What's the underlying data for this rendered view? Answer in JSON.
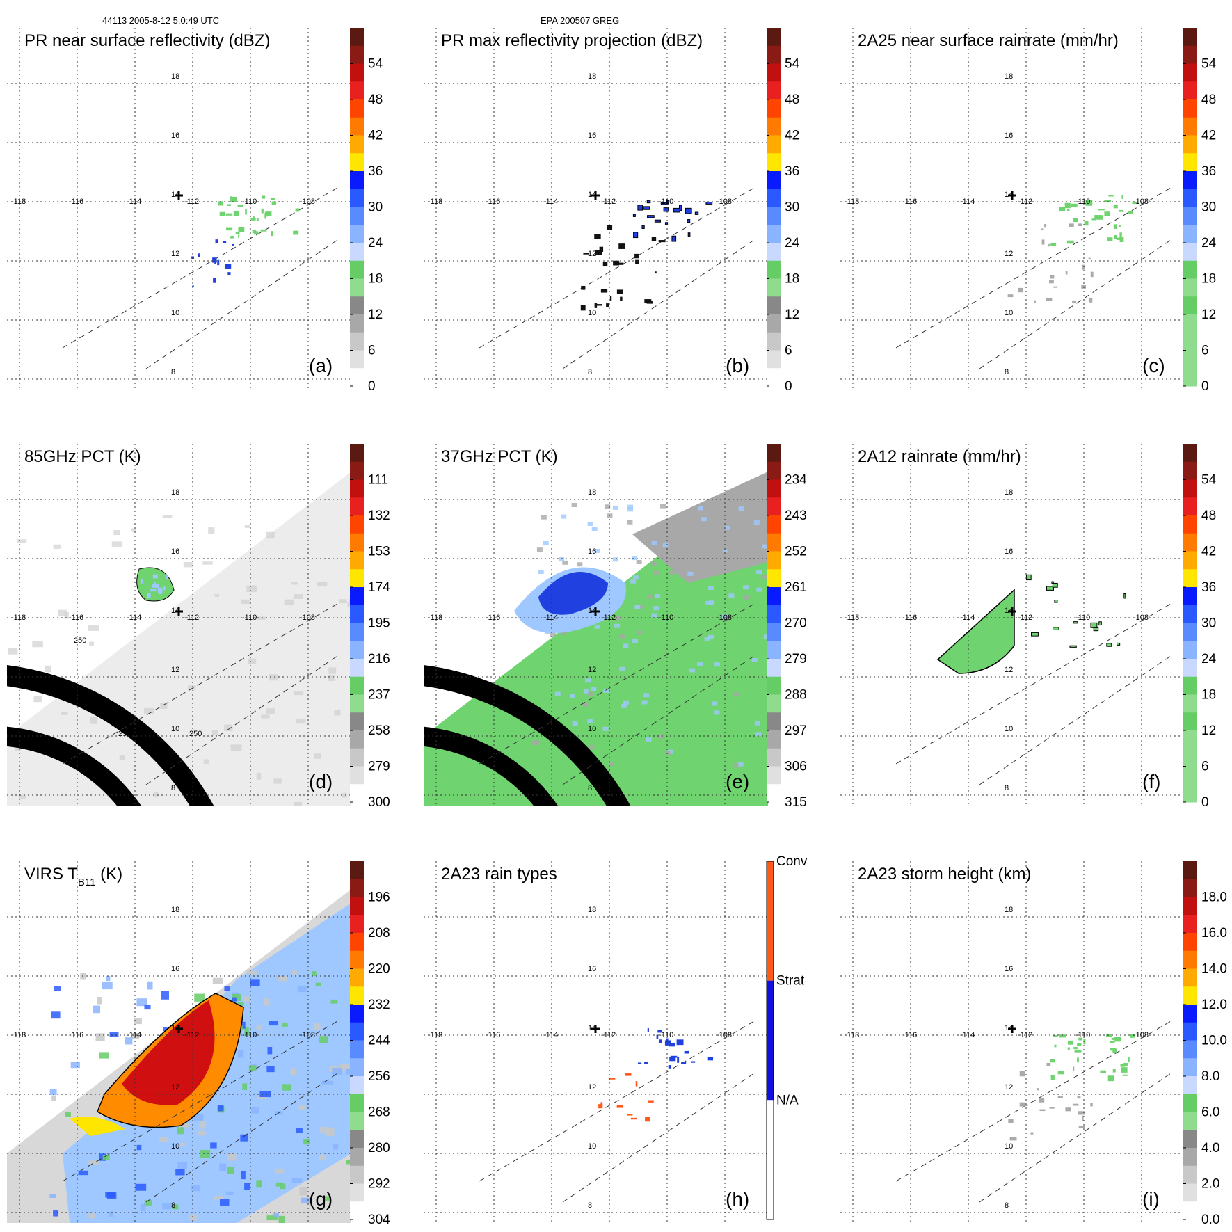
{
  "header": {
    "left": "44113 2005-8-12 5:0:49 UTC",
    "center": "EPA 200507 GREG"
  },
  "colors": {
    "grid": "#333333",
    "gray_swath": "#c8c8c8",
    "green": "#6fd36f",
    "lightblue": "#9ec8ff",
    "blue": "#2040e0",
    "orange": "#ff8c00",
    "red": "#d01010"
  },
  "chart_data": [
    {
      "type": "heatmap",
      "id": "a",
      "panel_label": "(a)",
      "title": "PR near surface reflectivity (dBZ)",
      "lon_ticks": [
        "-118",
        "-116",
        "-114",
        "-112",
        "-110",
        "-108"
      ],
      "lat_ticks": [
        "8",
        "10",
        "12",
        "14",
        "16",
        "18"
      ],
      "colorbar": {
        "ticks": [
          "54",
          "48",
          "42",
          "36",
          "30",
          "24",
          "18",
          "12",
          "6",
          "0"
        ],
        "colors": [
          "#5a1a12",
          "#8a1a14",
          "#c01010",
          "#e82020",
          "#ff4400",
          "#ff7a00",
          "#ffaa00",
          "#ffe600",
          "#0a1aff",
          "#2a5aff",
          "#5a8aff",
          "#8ab4ff",
          "#c8d8ff",
          "#66cc66",
          "#8fdc8f",
          "#888888",
          "#a8a8a8",
          "#c8c8c8",
          "#e0e0e0",
          "#ffffff"
        ]
      },
      "swath": "none",
      "rain": "pr_sparse"
    },
    {
      "type": "heatmap",
      "id": "b",
      "panel_label": "(b)",
      "title": "PR max reflectivity projection (dBZ)",
      "lon_ticks": [
        "-118",
        "-116",
        "-114",
        "-112",
        "-110",
        "-108"
      ],
      "lat_ticks": [
        "8",
        "10",
        "12",
        "14",
        "16",
        "18"
      ],
      "colorbar": {
        "ticks": [
          "54",
          "48",
          "42",
          "36",
          "30",
          "24",
          "18",
          "12",
          "6",
          "0"
        ],
        "colors": [
          "#5a1a12",
          "#8a1a14",
          "#c01010",
          "#e82020",
          "#ff4400",
          "#ff7a00",
          "#ffaa00",
          "#ffe600",
          "#0a1aff",
          "#2a5aff",
          "#5a8aff",
          "#8ab4ff",
          "#c8d8ff",
          "#66cc66",
          "#8fdc8f",
          "#888888",
          "#a8a8a8",
          "#c8c8c8",
          "#e0e0e0",
          "#ffffff"
        ]
      },
      "swath": "none",
      "rain": "pr_blue"
    },
    {
      "type": "heatmap",
      "id": "c",
      "panel_label": "(c)",
      "title": "2A25 near surface rainrate (mm/hr)",
      "lon_ticks": [
        "-118",
        "-116",
        "-114",
        "-112",
        "-110",
        "-108"
      ],
      "lat_ticks": [
        "8",
        "10",
        "12",
        "14",
        "16",
        "18"
      ],
      "colorbar": {
        "ticks": [
          "54",
          "48",
          "42",
          "36",
          "30",
          "24",
          "18",
          "12",
          "6",
          "0"
        ],
        "colors": [
          "#5a1a12",
          "#8a1a14",
          "#c01010",
          "#e82020",
          "#ff4400",
          "#ff7a00",
          "#ffaa00",
          "#ffe600",
          "#0a1aff",
          "#2a5aff",
          "#5a8aff",
          "#8ab4ff",
          "#c8d8ff",
          "#66cc66",
          "#8fdc8f",
          "#66cc66",
          "#8fdc8f",
          "#8fdc8f",
          "#8fdc8f",
          "#8fdc8f"
        ]
      },
      "swath": "none",
      "rain": "pr_green"
    },
    {
      "type": "heatmap",
      "id": "d",
      "panel_label": "(d)",
      "title": "85GHz PCT (K)",
      "lon_ticks": [
        "-118",
        "-116",
        "-114",
        "-112",
        "-110",
        "-108"
      ],
      "lat_ticks": [
        "8",
        "10",
        "12",
        "14",
        "16",
        "18"
      ],
      "colorbar": {
        "ticks": [
          "111",
          "132",
          "153",
          "174",
          "195",
          "216",
          "237",
          "258",
          "279",
          "300"
        ],
        "colors": [
          "#5a1a12",
          "#8a1a14",
          "#c01010",
          "#e82020",
          "#ff4400",
          "#ff7a00",
          "#ffaa00",
          "#ffe600",
          "#0a1aff",
          "#2a5aff",
          "#5a8aff",
          "#8ab4ff",
          "#c8d8ff",
          "#66cc66",
          "#8fdc8f",
          "#888888",
          "#a8a8a8",
          "#c8c8c8",
          "#e0e0e0",
          "#ffffff"
        ]
      },
      "swath": "gray",
      "arc_labels": [
        "250",
        "250",
        "250",
        "250"
      ],
      "rain": "d_blob"
    },
    {
      "type": "heatmap",
      "id": "e",
      "panel_label": "(e)",
      "title": "37GHz PCT (K)",
      "lon_ticks": [
        "-118",
        "-116",
        "-114",
        "-112",
        "-110",
        "-108"
      ],
      "lat_ticks": [
        "8",
        "10",
        "12",
        "14",
        "16",
        "18"
      ],
      "colorbar": {
        "ticks": [
          "234",
          "243",
          "252",
          "261",
          "270",
          "279",
          "288",
          "297",
          "306",
          "315"
        ],
        "colors": [
          "#5a1a12",
          "#8a1a14",
          "#c01010",
          "#e82020",
          "#ff4400",
          "#ff7a00",
          "#ffaa00",
          "#ffe600",
          "#0a1aff",
          "#2a5aff",
          "#5a8aff",
          "#8ab4ff",
          "#c8d8ff",
          "#66cc66",
          "#8fdc8f",
          "#888888",
          "#a8a8a8",
          "#c8c8c8",
          "#e0e0e0",
          "#ffffff"
        ]
      },
      "swath": "green",
      "rain": "e_blue"
    },
    {
      "type": "heatmap",
      "id": "f",
      "panel_label": "(f)",
      "title": "2A12 rainrate (mm/hr)",
      "lon_ticks": [
        "-118",
        "-116",
        "-114",
        "-112",
        "-110",
        "-108"
      ],
      "lat_ticks": [
        "8",
        "10",
        "12",
        "14",
        "16",
        "18"
      ],
      "colorbar": {
        "ticks": [
          "54",
          "48",
          "42",
          "36",
          "30",
          "24",
          "18",
          "12",
          "6",
          "0"
        ],
        "colors": [
          "#5a1a12",
          "#8a1a14",
          "#c01010",
          "#e82020",
          "#ff4400",
          "#ff7a00",
          "#ffaa00",
          "#ffe600",
          "#0a1aff",
          "#2a5aff",
          "#5a8aff",
          "#8ab4ff",
          "#c8d8ff",
          "#66cc66",
          "#8fdc8f",
          "#66cc66",
          "#8fdc8f",
          "#8fdc8f",
          "#8fdc8f",
          "#8fdc8f"
        ]
      },
      "swath": "none",
      "rain": "f_green"
    },
    {
      "type": "heatmap",
      "id": "g",
      "panel_label": "(g)",
      "title": "VIRS T",
      "title_sub": "B11",
      "title_suffix": " (K)",
      "lon_ticks": [
        "-118",
        "-116",
        "-114",
        "-112",
        "-110",
        "-108"
      ],
      "lat_ticks": [
        "8",
        "10",
        "12",
        "14",
        "16",
        "18"
      ],
      "colorbar": {
        "ticks": [
          "196",
          "208",
          "220",
          "232",
          "244",
          "256",
          "268",
          "280",
          "292",
          "304"
        ],
        "colors": [
          "#5a1a12",
          "#8a1a14",
          "#c01010",
          "#e82020",
          "#ff4400",
          "#ff7a00",
          "#ffaa00",
          "#ffe600",
          "#0a1aff",
          "#2a5aff",
          "#5a8aff",
          "#8ab4ff",
          "#c8d8ff",
          "#66cc66",
          "#8fdc8f",
          "#888888",
          "#a8a8a8",
          "#c8c8c8",
          "#e0e0e0",
          "#ffffff"
        ]
      },
      "swath": "virs",
      "rain": "g_storm"
    },
    {
      "type": "heatmap",
      "id": "h",
      "panel_label": "(h)",
      "title": "2A23 rain types",
      "lon_ticks": [
        "-118",
        "-116",
        "-114",
        "-112",
        "-110",
        "-108"
      ],
      "lat_ticks": [
        "8",
        "10",
        "12",
        "14",
        "16",
        "18"
      ],
      "colorbar": {
        "categorical": true,
        "ticks": [
          "Conv",
          "Strat",
          "N/A"
        ],
        "colors": [
          "#ff5a1a",
          "#1010e0",
          "#ffffff"
        ]
      },
      "swath": "none",
      "rain": "h_types"
    },
    {
      "type": "heatmap",
      "id": "i",
      "panel_label": "(i)",
      "title": "2A23 storm height (km)",
      "lon_ticks": [
        "-118",
        "-116",
        "-114",
        "-112",
        "-110",
        "-108"
      ],
      "lat_ticks": [
        "8",
        "10",
        "12",
        "14",
        "16",
        "18"
      ],
      "colorbar": {
        "ticks": [
          "18.0",
          "16.0",
          "14.0",
          "12.0",
          "10.0",
          "8.0",
          "6.0",
          "4.0",
          "2.0",
          "0.0"
        ],
        "colors": [
          "#5a1a12",
          "#8a1a14",
          "#c01010",
          "#e82020",
          "#ff4400",
          "#ff7a00",
          "#ffaa00",
          "#ffe600",
          "#0a1aff",
          "#2a5aff",
          "#5a8aff",
          "#8ab4ff",
          "#c8d8ff",
          "#66cc66",
          "#8fdc8f",
          "#888888",
          "#a8a8a8",
          "#c8c8c8",
          "#e0e0e0",
          "#ffffff"
        ]
      },
      "swath": "none",
      "rain": "pr_green"
    }
  ]
}
